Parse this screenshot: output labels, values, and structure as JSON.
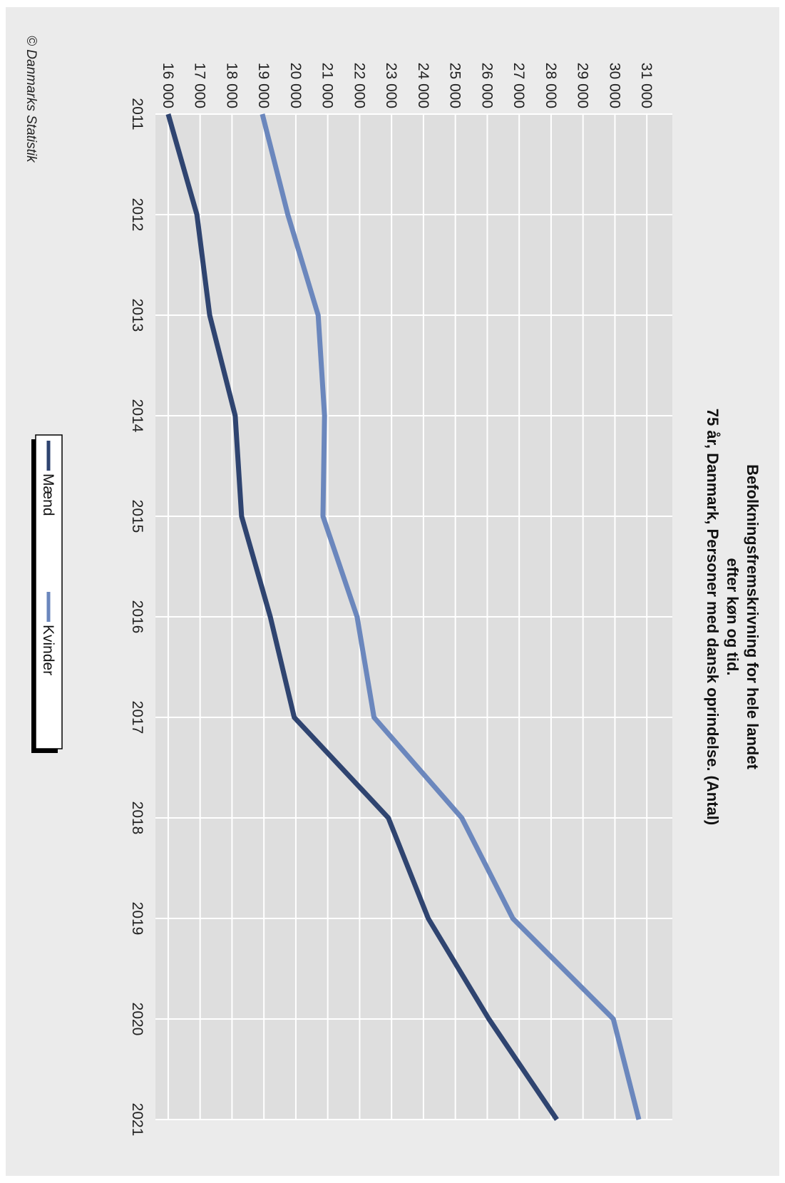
{
  "chart_data": {
    "type": "line",
    "title": "Befolkningsfremskrivning for hele landet",
    "subtitle_line1": "efter køn og tid.",
    "subtitle_line2": "75 år, Danmark, Personer med dansk oprindelse. (Antal)",
    "x": [
      "2011",
      "2012",
      "2013",
      "2014",
      "2015",
      "2016",
      "2017",
      "2018",
      "2019",
      "2020",
      "2021"
    ],
    "y_ticks": [
      "16 000",
      "17 000",
      "18 000",
      "19 000",
      "20 000",
      "21 000",
      "22 000",
      "23 000",
      "24 000",
      "25 000",
      "26 000",
      "27 000",
      "28 000",
      "29 000",
      "30 000",
      "31 000"
    ],
    "ylim": [
      15600,
      31800
    ],
    "grid": true,
    "legend_position": "bottom",
    "series": [
      {
        "name": "Mænd",
        "color": "#2f4470",
        "values": [
          16000,
          16900,
          17300,
          18100,
          18300,
          19200,
          19950,
          22900,
          24150,
          26050,
          28180
        ]
      },
      {
        "name": "Kvinder",
        "color": "#6b87bd",
        "values": [
          18950,
          19750,
          20700,
          20900,
          20850,
          21920,
          22450,
          25200,
          26800,
          29950,
          30750
        ]
      }
    ]
  },
  "footer": {
    "credit": "© Danmarks Statistik"
  }
}
